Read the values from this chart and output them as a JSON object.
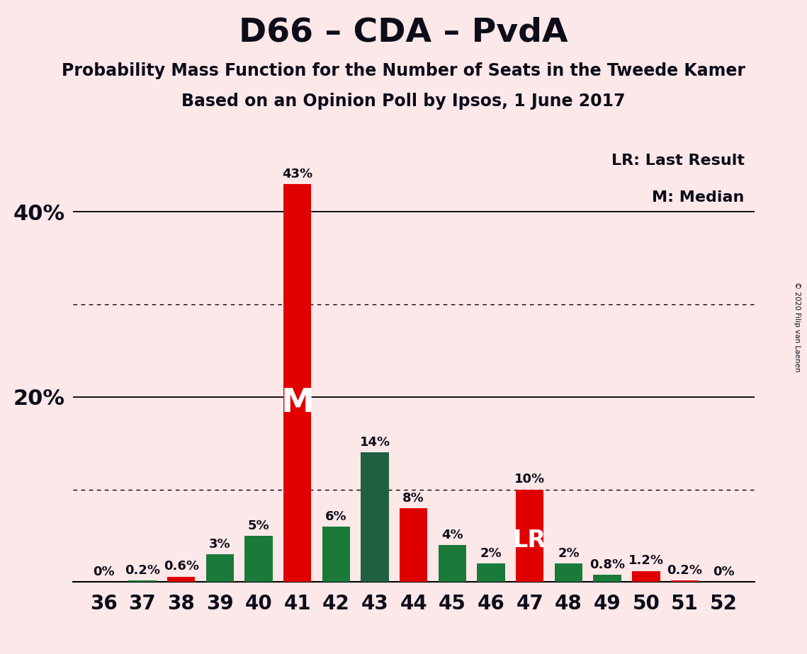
{
  "title": "D66 – CDA – PvdA",
  "subtitle1": "Probability Mass Function for the Number of Seats in the Tweede Kamer",
  "subtitle2": "Based on an Opinion Poll by Ipsos, 1 June 2017",
  "copyright": "© 2020 Filip van Laenen",
  "legend_lr": "LR: Last Result",
  "legend_m": "M: Median",
  "seats": [
    36,
    37,
    38,
    39,
    40,
    41,
    42,
    43,
    44,
    45,
    46,
    47,
    48,
    49,
    50,
    51,
    52
  ],
  "values": [
    0.0,
    0.2,
    0.6,
    3.0,
    5.0,
    43.0,
    6.0,
    14.0,
    8.0,
    4.0,
    2.0,
    10.0,
    2.0,
    0.8,
    1.2,
    0.2,
    0.0
  ],
  "colors": [
    "#1a7a3a",
    "#1a7a3a",
    "#e00000",
    "#1a7a3a",
    "#1a7a3a",
    "#e00000",
    "#1a7a3a",
    "#206040",
    "#e00000",
    "#1a7a3a",
    "#1a7a3a",
    "#e00000",
    "#1a7a3a",
    "#1a7a3a",
    "#e00000",
    "#e00000",
    "#1a7a3a"
  ],
  "labels": [
    "0%",
    "0.2%",
    "0.6%",
    "3%",
    "5%",
    "43%",
    "6%",
    "14%",
    "8%",
    "4%",
    "2%",
    "10%",
    "2%",
    "0.8%",
    "1.2%",
    "0.2%",
    "0%"
  ],
  "median_seat": 41,
  "lr_seat": 47,
  "background_color": "#fce8e8",
  "ylim_max": 47,
  "solid_lines": [
    20,
    40
  ],
  "dotted_lines": [
    10,
    30
  ],
  "title_fontsize": 34,
  "subtitle_fontsize": 17,
  "bar_width": 0.72,
  "text_color": "#0d0d1a",
  "label_fontsize": 13,
  "ytick_positions": [
    20,
    40
  ],
  "ytick_labels": [
    "20%",
    "40%"
  ],
  "xtick_fontsize": 20,
  "ytick_fontsize": 22,
  "legend_fontsize": 16,
  "m_fontsize": 34,
  "lr_fontsize": 24
}
